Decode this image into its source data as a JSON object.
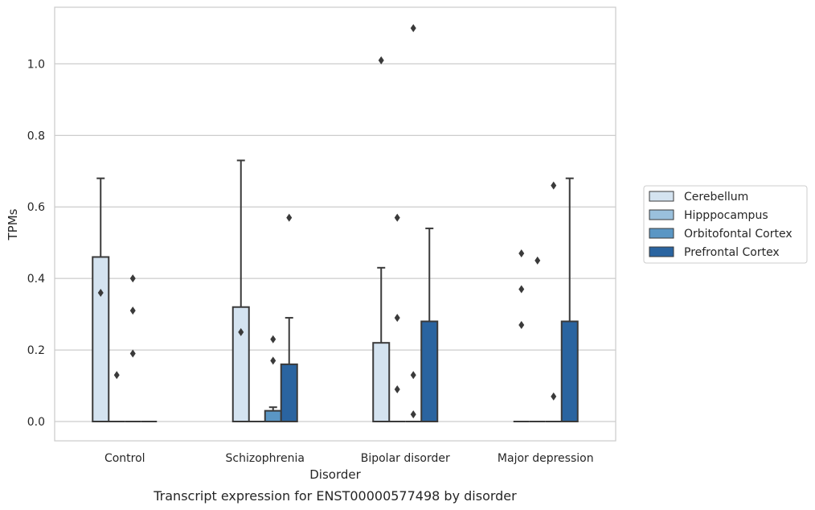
{
  "chart_data": {
    "type": "box",
    "xlabel": "Disorder",
    "ylabel": "TPMs",
    "caption": "Transcript expression for ENST00000577498 by disorder",
    "categories": [
      "Control",
      "Schizophrenia",
      "Bipolar disorder",
      "Major depression"
    ],
    "ylim": [
      -0.05,
      1.15
    ],
    "yticks": [
      "0.0",
      "0.2",
      "0.4",
      "0.6",
      "0.8",
      "1.0"
    ],
    "grid": true,
    "legend_position": "right",
    "series": [
      {
        "name": "Cerebellum",
        "color": "#d4e3f0",
        "boxes": [
          {
            "q1": 0,
            "median": 0,
            "q3": 0.46,
            "whisker_low": 0,
            "whisker_high": 0.68,
            "outliers": [
              0.36
            ]
          },
          {
            "q1": 0,
            "median": 0,
            "q3": 0.32,
            "whisker_low": 0,
            "whisker_high": 0.73,
            "outliers": [
              0.25
            ]
          },
          {
            "q1": 0,
            "median": 0,
            "q3": 0.22,
            "whisker_low": 0,
            "whisker_high": 0.43,
            "outliers": [
              1.01
            ]
          },
          {
            "q1": 0,
            "median": 0,
            "q3": 0,
            "whisker_low": 0,
            "whisker_high": 0,
            "outliers": [
              0.47,
              0.37,
              0.27
            ]
          }
        ]
      },
      {
        "name": "Hipppocampus",
        "color": "#9ac0dc",
        "boxes": [
          {
            "q1": 0,
            "median": 0,
            "q3": 0,
            "whisker_low": 0,
            "whisker_high": 0,
            "outliers": [
              0.13
            ]
          },
          {
            "q1": 0,
            "median": 0,
            "q3": 0,
            "whisker_low": 0,
            "whisker_high": 0,
            "outliers": []
          },
          {
            "q1": 0,
            "median": 0,
            "q3": 0,
            "whisker_low": 0,
            "whisker_high": 0,
            "outliers": [
              0.57,
              0.29,
              0.09
            ]
          },
          {
            "q1": 0,
            "median": 0,
            "q3": 0,
            "whisker_low": 0,
            "whisker_high": 0,
            "outliers": [
              0.45
            ]
          }
        ]
      },
      {
        "name": "Orbitofontal Cortex",
        "color": "#5a96c4",
        "boxes": [
          {
            "q1": 0,
            "median": 0,
            "q3": 0,
            "whisker_low": 0,
            "whisker_high": 0,
            "outliers": [
              0.4,
              0.31,
              0.19
            ]
          },
          {
            "q1": 0,
            "median": 0,
            "q3": 0.03,
            "whisker_low": 0,
            "whisker_high": 0.04,
            "outliers": [
              0.23,
              0.17
            ]
          },
          {
            "q1": 0,
            "median": 0,
            "q3": 0,
            "whisker_low": 0,
            "whisker_high": 0,
            "outliers": [
              1.1,
              0.13,
              0.02
            ]
          },
          {
            "q1": 0,
            "median": 0,
            "q3": 0,
            "whisker_low": 0,
            "whisker_high": 0,
            "outliers": [
              0.66,
              0.07
            ]
          }
        ]
      },
      {
        "name": "Prefrontal Cortex",
        "color": "#2a64a0",
        "boxes": [
          {
            "q1": 0,
            "median": 0,
            "q3": 0,
            "whisker_low": 0,
            "whisker_high": 0,
            "outliers": []
          },
          {
            "q1": 0,
            "median": 0,
            "q3": 0.16,
            "whisker_low": 0,
            "whisker_high": 0.29,
            "outliers": [
              0.57
            ]
          },
          {
            "q1": 0,
            "median": 0,
            "q3": 0.28,
            "whisker_low": 0,
            "whisker_high": 0.54,
            "outliers": []
          },
          {
            "q1": 0,
            "median": 0,
            "q3": 0.28,
            "whisker_low": 0,
            "whisker_high": 0.68,
            "outliers": []
          }
        ]
      }
    ]
  }
}
